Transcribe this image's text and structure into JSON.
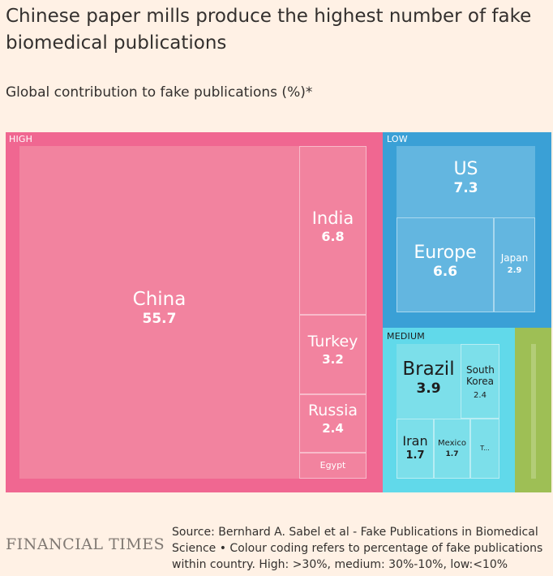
{
  "title": "Chinese paper mills produce the highest number of fake biomedical publications",
  "subtitle": "Global contribution to fake publications (%)*",
  "groups": {
    "high": "HIGH",
    "low": "LOW",
    "medium": "MEDIUM"
  },
  "colors": {
    "high_frame": "#f06791",
    "high_fill": "#f2839f",
    "low_frame": "#3aa0d6",
    "low_fill": "#63b6e0",
    "medium_frame": "#61d9ea",
    "medium_fill": "#7cdfea",
    "other_fill": "#9ebf55"
  },
  "chart_data": {
    "type": "treemap",
    "title": "Chinese paper mills produce the highest number of fake biomedical publications",
    "subtitle": "Global contribution to fake publications (%)*",
    "groups": [
      {
        "name": "HIGH",
        "items": [
          {
            "label": "China",
            "value": "55.7"
          },
          {
            "label": "India",
            "value": "6.8"
          },
          {
            "label": "Turkey",
            "value": "3.2"
          },
          {
            "label": "Russia",
            "value": "2.4"
          },
          {
            "label": "Egypt",
            "value": ""
          }
        ]
      },
      {
        "name": "LOW",
        "items": [
          {
            "label": "US",
            "value": "7.3"
          },
          {
            "label": "Europe",
            "value": "6.6"
          },
          {
            "label": "Japan",
            "value": "2.9"
          }
        ]
      },
      {
        "name": "MEDIUM",
        "items": [
          {
            "label": "Brazil",
            "value": "3.9"
          },
          {
            "label": "South Korea",
            "value": "2.4"
          },
          {
            "label": "Iran",
            "value": "1.7"
          },
          {
            "label": "Mexico",
            "value": "1.7"
          },
          {
            "label": "T...",
            "value": ""
          }
        ]
      }
    ]
  },
  "footer": {
    "logo": "FINANCIAL TIMES",
    "source": "Source: Bernhard A. Sabel et al - Fake Publications in Biomedical Science • Colour coding refers to percentage of fake publications within country. High: >30%, medium: 30%-10%, low:<10%"
  }
}
